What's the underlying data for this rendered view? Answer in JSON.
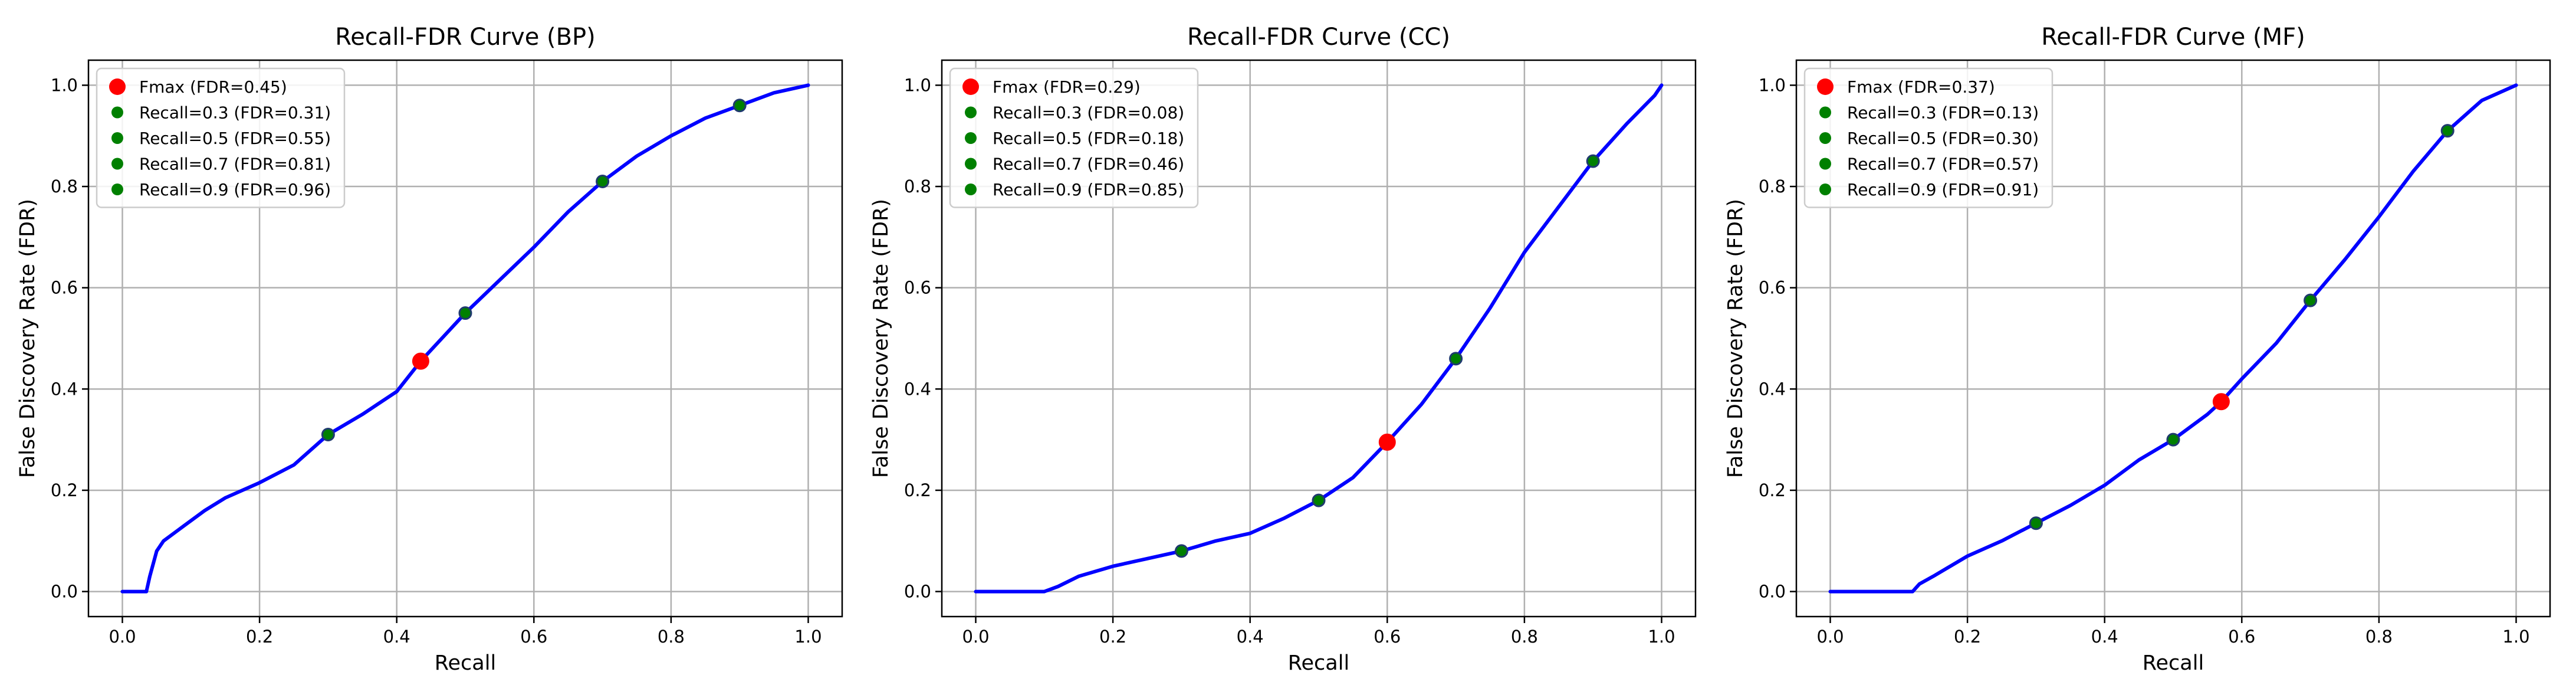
{
  "colors": {
    "curve": "#0000ff",
    "fmax": "#ff0000",
    "recall_point": "#008000",
    "marker_edge": "#1f3a6e"
  },
  "chart_data": [
    {
      "type": "line",
      "title": "Recall-FDR Curve (BP)",
      "xlabel": "Recall",
      "ylabel": "False Discovery Rate (FDR)",
      "xlim": [
        0.0,
        1.0
      ],
      "ylim": [
        0.0,
        1.0
      ],
      "xticks": [
        "0.0",
        "0.2",
        "0.4",
        "0.6",
        "0.8",
        "1.0"
      ],
      "yticks": [
        "0.0",
        "0.2",
        "0.4",
        "0.6",
        "0.8",
        "1.0"
      ],
      "grid": true,
      "legend_position": "top-left",
      "series": [
        {
          "role": "curve",
          "x": [
            0.0,
            0.035,
            0.04,
            0.05,
            0.06,
            0.08,
            0.1,
            0.12,
            0.15,
            0.2,
            0.25,
            0.3,
            0.35,
            0.4,
            0.435,
            0.5,
            0.55,
            0.6,
            0.65,
            0.7,
            0.75,
            0.8,
            0.85,
            0.9,
            0.95,
            1.0
          ],
          "y": [
            0.0,
            0.0,
            0.03,
            0.08,
            0.1,
            0.12,
            0.14,
            0.16,
            0.185,
            0.215,
            0.25,
            0.31,
            0.35,
            0.395,
            0.455,
            0.55,
            0.615,
            0.68,
            0.75,
            0.81,
            0.86,
            0.9,
            0.935,
            0.96,
            0.985,
            1.0
          ]
        }
      ],
      "markers": [
        {
          "label": "Fmax (FDR=0.45)",
          "x": 0.435,
          "y": 0.455,
          "kind": "fmax"
        },
        {
          "label": "Recall=0.3 (FDR=0.31)",
          "x": 0.3,
          "y": 0.31,
          "kind": "recall"
        },
        {
          "label": "Recall=0.5 (FDR=0.55)",
          "x": 0.5,
          "y": 0.55,
          "kind": "recall"
        },
        {
          "label": "Recall=0.7 (FDR=0.81)",
          "x": 0.7,
          "y": 0.81,
          "kind": "recall"
        },
        {
          "label": "Recall=0.9 (FDR=0.96)",
          "x": 0.9,
          "y": 0.96,
          "kind": "recall"
        }
      ]
    },
    {
      "type": "line",
      "title": "Recall-FDR Curve (CC)",
      "xlabel": "Recall",
      "ylabel": "False Discovery Rate (FDR)",
      "xlim": [
        0.0,
        1.0
      ],
      "ylim": [
        0.0,
        1.0
      ],
      "xticks": [
        "0.0",
        "0.2",
        "0.4",
        "0.6",
        "0.8",
        "1.0"
      ],
      "yticks": [
        "0.0",
        "0.2",
        "0.4",
        "0.6",
        "0.8",
        "1.0"
      ],
      "grid": true,
      "legend_position": "top-left",
      "series": [
        {
          "role": "curve",
          "x": [
            0.0,
            0.1,
            0.12,
            0.15,
            0.2,
            0.25,
            0.3,
            0.35,
            0.4,
            0.45,
            0.5,
            0.55,
            0.6,
            0.65,
            0.7,
            0.75,
            0.8,
            0.85,
            0.9,
            0.95,
            0.99,
            1.0
          ],
          "y": [
            0.0,
            0.0,
            0.01,
            0.03,
            0.05,
            0.065,
            0.08,
            0.1,
            0.115,
            0.145,
            0.18,
            0.225,
            0.295,
            0.37,
            0.46,
            0.56,
            0.67,
            0.76,
            0.85,
            0.925,
            0.98,
            1.0
          ]
        }
      ],
      "markers": [
        {
          "label": "Fmax (FDR=0.29)",
          "x": 0.6,
          "y": 0.295,
          "kind": "fmax"
        },
        {
          "label": "Recall=0.3 (FDR=0.08)",
          "x": 0.3,
          "y": 0.08,
          "kind": "recall"
        },
        {
          "label": "Recall=0.5 (FDR=0.18)",
          "x": 0.5,
          "y": 0.18,
          "kind": "recall"
        },
        {
          "label": "Recall=0.7 (FDR=0.46)",
          "x": 0.7,
          "y": 0.46,
          "kind": "recall"
        },
        {
          "label": "Recall=0.9 (FDR=0.85)",
          "x": 0.9,
          "y": 0.85,
          "kind": "recall"
        }
      ]
    },
    {
      "type": "line",
      "title": "Recall-FDR Curve (MF)",
      "xlabel": "Recall",
      "ylabel": "False Discovery Rate (FDR)",
      "xlim": [
        0.0,
        1.0
      ],
      "ylim": [
        0.0,
        1.0
      ],
      "xticks": [
        "0.0",
        "0.2",
        "0.4",
        "0.6",
        "0.8",
        "1.0"
      ],
      "yticks": [
        "0.0",
        "0.2",
        "0.4",
        "0.6",
        "0.8",
        "1.0"
      ],
      "grid": true,
      "legend_position": "top-left",
      "series": [
        {
          "role": "curve",
          "x": [
            0.0,
            0.12,
            0.13,
            0.15,
            0.2,
            0.25,
            0.3,
            0.35,
            0.4,
            0.45,
            0.5,
            0.55,
            0.57,
            0.6,
            0.65,
            0.7,
            0.75,
            0.8,
            0.85,
            0.9,
            0.95,
            1.0
          ],
          "y": [
            0.0,
            0.0,
            0.015,
            0.03,
            0.07,
            0.1,
            0.135,
            0.17,
            0.21,
            0.26,
            0.3,
            0.35,
            0.375,
            0.42,
            0.49,
            0.575,
            0.655,
            0.74,
            0.83,
            0.91,
            0.97,
            1.0
          ]
        }
      ],
      "markers": [
        {
          "label": "Fmax (FDR=0.37)",
          "x": 0.57,
          "y": 0.375,
          "kind": "fmax"
        },
        {
          "label": "Recall=0.3 (FDR=0.13)",
          "x": 0.3,
          "y": 0.135,
          "kind": "recall"
        },
        {
          "label": "Recall=0.5 (FDR=0.30)",
          "x": 0.5,
          "y": 0.3,
          "kind": "recall"
        },
        {
          "label": "Recall=0.7 (FDR=0.57)",
          "x": 0.7,
          "y": 0.575,
          "kind": "recall"
        },
        {
          "label": "Recall=0.9 (FDR=0.91)",
          "x": 0.9,
          "y": 0.91,
          "kind": "recall"
        }
      ]
    }
  ]
}
